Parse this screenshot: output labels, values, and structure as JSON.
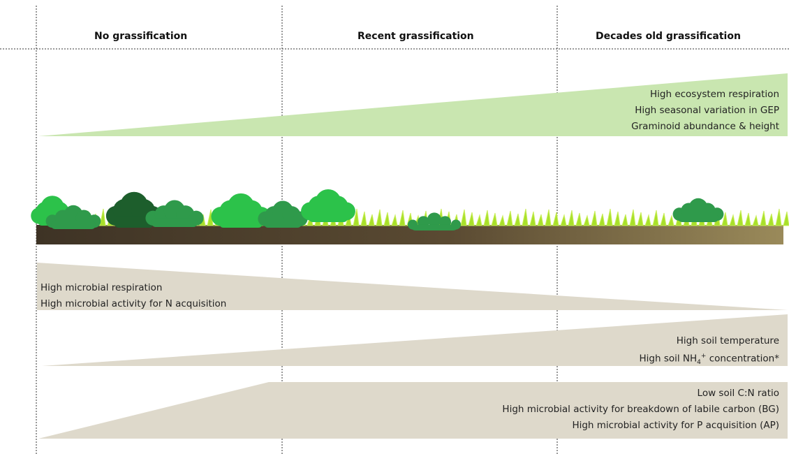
{
  "headers": {
    "none": "No grassification",
    "recent": "Recent grassification",
    "old": "Decades old grassification"
  },
  "green_wedge": {
    "lines": [
      "High ecosystem respiration",
      "High seasonal variation in GEP",
      "Graminoid abundance & height"
    ],
    "color": "#c9e6b0"
  },
  "decreasing_wedge": {
    "lines": [
      "High microbial respiration",
      "High microbial activity for N acquisition"
    ],
    "color": "#ded9cb"
  },
  "soil_wedge": {
    "line1": "High soil temperature",
    "line2_prefix": "High soil NH",
    "line2_sub": "4",
    "line2_sup": "+",
    "line2_suffix": " concentration*",
    "color": "#ded9cb"
  },
  "bottom_wedge": {
    "lines": [
      "Low soil C:N ratio",
      "High microbial activity for breakdown of labile carbon (BG)",
      "High microbial activity for P acquisition (AP)"
    ],
    "color": "#ded9cb"
  },
  "colors": {
    "soil_dark": "#3e3325",
    "soil_light": "#9a8a5a",
    "grass": "#a8e02a",
    "shrub_dark": "#1d5e2c",
    "shrub_mid": "#2f9a4b",
    "shrub_light": "#2cc24a"
  }
}
